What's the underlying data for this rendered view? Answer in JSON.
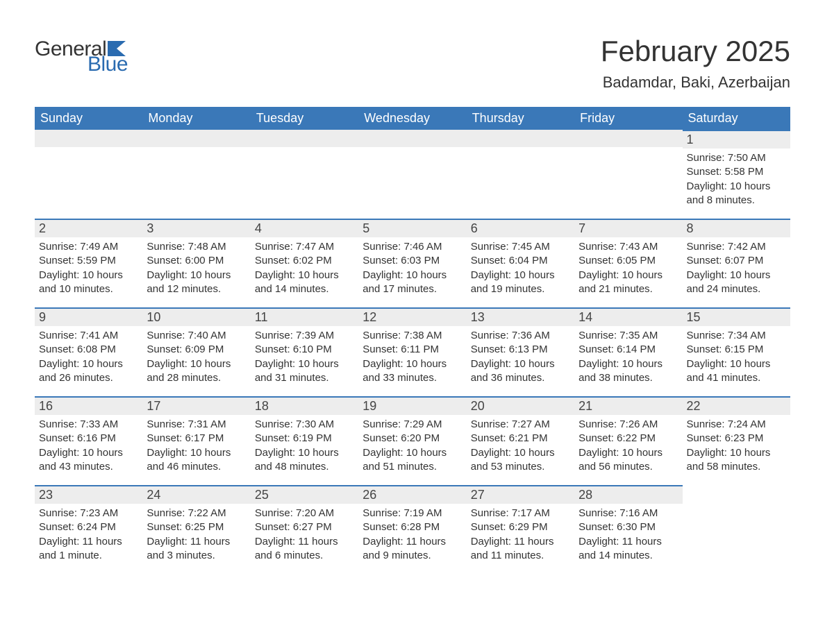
{
  "logo": {
    "text1": "General",
    "text2": "Blue"
  },
  "title": "February 2025",
  "location": "Badamdar, Baki, Azerbaijan",
  "colors": {
    "header_bg": "#3a78b8",
    "header_text": "#ffffff",
    "daynum_bg": "#ededed",
    "border_top": "#3a78b8",
    "logo_accent": "#2a6bb0",
    "body_text": "#333333",
    "page_bg": "#ffffff"
  },
  "day_headers": [
    "Sunday",
    "Monday",
    "Tuesday",
    "Wednesday",
    "Thursday",
    "Friday",
    "Saturday"
  ],
  "weeks": [
    [
      null,
      null,
      null,
      null,
      null,
      null,
      {
        "n": "1",
        "sunrise": "Sunrise: 7:50 AM",
        "sunset": "Sunset: 5:58 PM",
        "daylight": "Daylight: 10 hours and 8 minutes."
      }
    ],
    [
      {
        "n": "2",
        "sunrise": "Sunrise: 7:49 AM",
        "sunset": "Sunset: 5:59 PM",
        "daylight": "Daylight: 10 hours and 10 minutes."
      },
      {
        "n": "3",
        "sunrise": "Sunrise: 7:48 AM",
        "sunset": "Sunset: 6:00 PM",
        "daylight": "Daylight: 10 hours and 12 minutes."
      },
      {
        "n": "4",
        "sunrise": "Sunrise: 7:47 AM",
        "sunset": "Sunset: 6:02 PM",
        "daylight": "Daylight: 10 hours and 14 minutes."
      },
      {
        "n": "5",
        "sunrise": "Sunrise: 7:46 AM",
        "sunset": "Sunset: 6:03 PM",
        "daylight": "Daylight: 10 hours and 17 minutes."
      },
      {
        "n": "6",
        "sunrise": "Sunrise: 7:45 AM",
        "sunset": "Sunset: 6:04 PM",
        "daylight": "Daylight: 10 hours and 19 minutes."
      },
      {
        "n": "7",
        "sunrise": "Sunrise: 7:43 AM",
        "sunset": "Sunset: 6:05 PM",
        "daylight": "Daylight: 10 hours and 21 minutes."
      },
      {
        "n": "8",
        "sunrise": "Sunrise: 7:42 AM",
        "sunset": "Sunset: 6:07 PM",
        "daylight": "Daylight: 10 hours and 24 minutes."
      }
    ],
    [
      {
        "n": "9",
        "sunrise": "Sunrise: 7:41 AM",
        "sunset": "Sunset: 6:08 PM",
        "daylight": "Daylight: 10 hours and 26 minutes."
      },
      {
        "n": "10",
        "sunrise": "Sunrise: 7:40 AM",
        "sunset": "Sunset: 6:09 PM",
        "daylight": "Daylight: 10 hours and 28 minutes."
      },
      {
        "n": "11",
        "sunrise": "Sunrise: 7:39 AM",
        "sunset": "Sunset: 6:10 PM",
        "daylight": "Daylight: 10 hours and 31 minutes."
      },
      {
        "n": "12",
        "sunrise": "Sunrise: 7:38 AM",
        "sunset": "Sunset: 6:11 PM",
        "daylight": "Daylight: 10 hours and 33 minutes."
      },
      {
        "n": "13",
        "sunrise": "Sunrise: 7:36 AM",
        "sunset": "Sunset: 6:13 PM",
        "daylight": "Daylight: 10 hours and 36 minutes."
      },
      {
        "n": "14",
        "sunrise": "Sunrise: 7:35 AM",
        "sunset": "Sunset: 6:14 PM",
        "daylight": "Daylight: 10 hours and 38 minutes."
      },
      {
        "n": "15",
        "sunrise": "Sunrise: 7:34 AM",
        "sunset": "Sunset: 6:15 PM",
        "daylight": "Daylight: 10 hours and 41 minutes."
      }
    ],
    [
      {
        "n": "16",
        "sunrise": "Sunrise: 7:33 AM",
        "sunset": "Sunset: 6:16 PM",
        "daylight": "Daylight: 10 hours and 43 minutes."
      },
      {
        "n": "17",
        "sunrise": "Sunrise: 7:31 AM",
        "sunset": "Sunset: 6:17 PM",
        "daylight": "Daylight: 10 hours and 46 minutes."
      },
      {
        "n": "18",
        "sunrise": "Sunrise: 7:30 AM",
        "sunset": "Sunset: 6:19 PM",
        "daylight": "Daylight: 10 hours and 48 minutes."
      },
      {
        "n": "19",
        "sunrise": "Sunrise: 7:29 AM",
        "sunset": "Sunset: 6:20 PM",
        "daylight": "Daylight: 10 hours and 51 minutes."
      },
      {
        "n": "20",
        "sunrise": "Sunrise: 7:27 AM",
        "sunset": "Sunset: 6:21 PM",
        "daylight": "Daylight: 10 hours and 53 minutes."
      },
      {
        "n": "21",
        "sunrise": "Sunrise: 7:26 AM",
        "sunset": "Sunset: 6:22 PM",
        "daylight": "Daylight: 10 hours and 56 minutes."
      },
      {
        "n": "22",
        "sunrise": "Sunrise: 7:24 AM",
        "sunset": "Sunset: 6:23 PM",
        "daylight": "Daylight: 10 hours and 58 minutes."
      }
    ],
    [
      {
        "n": "23",
        "sunrise": "Sunrise: 7:23 AM",
        "sunset": "Sunset: 6:24 PM",
        "daylight": "Daylight: 11 hours and 1 minute."
      },
      {
        "n": "24",
        "sunrise": "Sunrise: 7:22 AM",
        "sunset": "Sunset: 6:25 PM",
        "daylight": "Daylight: 11 hours and 3 minutes."
      },
      {
        "n": "25",
        "sunrise": "Sunrise: 7:20 AM",
        "sunset": "Sunset: 6:27 PM",
        "daylight": "Daylight: 11 hours and 6 minutes."
      },
      {
        "n": "26",
        "sunrise": "Sunrise: 7:19 AM",
        "sunset": "Sunset: 6:28 PM",
        "daylight": "Daylight: 11 hours and 9 minutes."
      },
      {
        "n": "27",
        "sunrise": "Sunrise: 7:17 AM",
        "sunset": "Sunset: 6:29 PM",
        "daylight": "Daylight: 11 hours and 11 minutes."
      },
      {
        "n": "28",
        "sunrise": "Sunrise: 7:16 AM",
        "sunset": "Sunset: 6:30 PM",
        "daylight": "Daylight: 11 hours and 14 minutes."
      },
      null
    ]
  ]
}
